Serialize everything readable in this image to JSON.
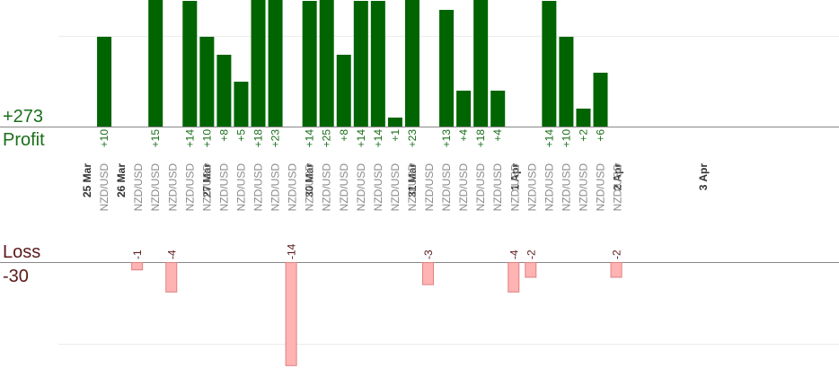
{
  "summary": {
    "profit_value": "+273",
    "profit_label": "Profit",
    "loss_label": "Loss",
    "loss_value": "-30"
  },
  "colors": {
    "profit_bar": "#006400",
    "profit_text": "#1a6e1a",
    "loss_bar": "#ffb3b3",
    "loss_border": "#e08080",
    "loss_text": "#5a1a1a",
    "instrument_text": "#8a8a8a",
    "date_text": "#333333"
  },
  "chart_data": {
    "type": "bar",
    "profit_ylim": [
      0,
      25
    ],
    "loss_ylim": [
      -14,
      0
    ],
    "grid": true,
    "date_labels": [
      {
        "text": "25 Mar",
        "slot": 0
      },
      {
        "text": "26 Mar",
        "slot": 2
      },
      {
        "text": "27 Mar",
        "slot": 7
      },
      {
        "text": "30 Mar",
        "slot": 13
      },
      {
        "text": "31 Mar",
        "slot": 19
      },
      {
        "text": "1 Apr",
        "slot": 25
      },
      {
        "text": "2 Apr",
        "slot": 31
      },
      {
        "text": "3 Apr",
        "slot": 36
      }
    ],
    "trades": [
      {
        "slot": 1,
        "instrument": "NZD/USD",
        "value": 10,
        "label": "+10"
      },
      {
        "slot": 3,
        "instrument": "NZD/USD",
        "value": -1,
        "label": "-1"
      },
      {
        "slot": 4,
        "instrument": "NZD/USD",
        "value": 15,
        "label": "+15"
      },
      {
        "slot": 5,
        "instrument": "NZD/USD",
        "value": -4,
        "label": "-4"
      },
      {
        "slot": 6,
        "instrument": "NZD/USD",
        "value": 14,
        "label": "+14"
      },
      {
        "slot": 7,
        "instrument": "NZD/USD",
        "value": 10,
        "label": "+10"
      },
      {
        "slot": 8,
        "instrument": "NZD/USD",
        "value": 8,
        "label": "+8"
      },
      {
        "slot": 9,
        "instrument": "NZD/USD",
        "value": 5,
        "label": "+5"
      },
      {
        "slot": 10,
        "instrument": "NZD/USD",
        "value": 18,
        "label": "+18"
      },
      {
        "slot": 11,
        "instrument": "NZD/USD",
        "value": 23,
        "label": "+23"
      },
      {
        "slot": 12,
        "instrument": "NZD/USD",
        "value": -14,
        "label": "-14"
      },
      {
        "slot": 13,
        "instrument": "NZD/USD",
        "value": 14,
        "label": "+14"
      },
      {
        "slot": 14,
        "instrument": "NZD/USD",
        "value": 25,
        "label": "+25"
      },
      {
        "slot": 15,
        "instrument": "NZD/USD",
        "value": 8,
        "label": "+8"
      },
      {
        "slot": 16,
        "instrument": "NZD/USD",
        "value": 14,
        "label": "+14"
      },
      {
        "slot": 17,
        "instrument": "NZD/USD",
        "value": 14,
        "label": "+14"
      },
      {
        "slot": 18,
        "instrument": "NZD/USD",
        "value": 1,
        "label": "+1"
      },
      {
        "slot": 19,
        "instrument": "NZD/USD",
        "value": 23,
        "label": "+23"
      },
      {
        "slot": 20,
        "instrument": "NZD/USD",
        "value": -3,
        "label": "-3"
      },
      {
        "slot": 21,
        "instrument": "NZD/USD",
        "value": 13,
        "label": "+13"
      },
      {
        "slot": 22,
        "instrument": "NZD/USD",
        "value": 4,
        "label": "+4"
      },
      {
        "slot": 23,
        "instrument": "NZD/USD",
        "value": 18,
        "label": "+18"
      },
      {
        "slot": 24,
        "instrument": "NZD/USD",
        "value": 4,
        "label": "+4"
      },
      {
        "slot": 25,
        "instrument": "NZD/USD",
        "value": -4,
        "label": "-4"
      },
      {
        "slot": 26,
        "instrument": "NZD/USD",
        "value": -2,
        "label": "-2"
      },
      {
        "slot": 27,
        "instrument": "NZD/USD",
        "value": 14,
        "label": "+14"
      },
      {
        "slot": 28,
        "instrument": "NZD/USD",
        "value": 10,
        "label": "+10"
      },
      {
        "slot": 29,
        "instrument": "NZD/USD",
        "value": 2,
        "label": "+2"
      },
      {
        "slot": 30,
        "instrument": "NZD/USD",
        "value": 6,
        "label": "+6"
      },
      {
        "slot": 31,
        "instrument": "NZD/USD",
        "value": -2,
        "label": "-2"
      }
    ]
  }
}
